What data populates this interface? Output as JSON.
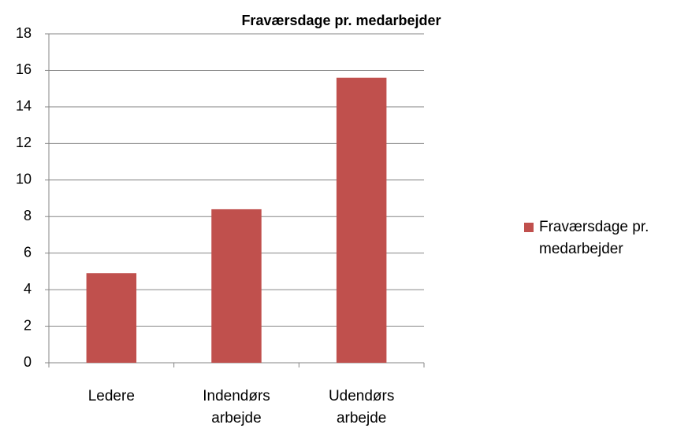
{
  "chart_data": {
    "type": "bar",
    "title": "Fraværsdage pr. medarbejder",
    "categories": [
      "Ledere",
      "Indendørs arbejde",
      "Udendørs arbejde"
    ],
    "series": [
      {
        "name": "Fraværsdage pr. medarbejder",
        "color": "#c0504d",
        "values": [
          4.9,
          8.4,
          15.6
        ]
      }
    ],
    "ylim": [
      0,
      18
    ],
    "yticks": [
      0,
      2,
      4,
      6,
      8,
      10,
      12,
      14,
      16,
      18
    ],
    "grid": true,
    "legend": "right"
  }
}
